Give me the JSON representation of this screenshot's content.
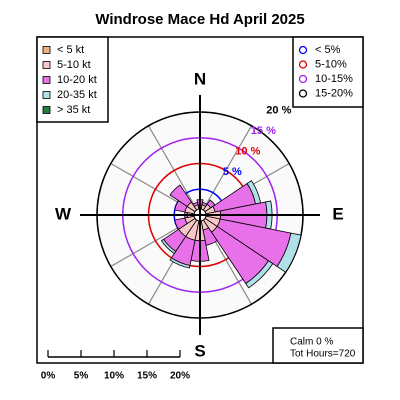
{
  "chart_data": {
    "type": "windrose",
    "title": "Windrose  Mace Hd April 2025",
    "compass": [
      "N",
      "E",
      "S",
      "W"
    ],
    "series": [
      {
        "name": "< 5  kt",
        "color": "#f0b080",
        "values": [
          1,
          1,
          1,
          1,
          1,
          1,
          1,
          1,
          1,
          1,
          1,
          1,
          1,
          1,
          1,
          1
        ]
      },
      {
        "name": "5-10 kt",
        "color": "#f8c8c8",
        "values": [
          1,
          1,
          1.5,
          2,
          3,
          3,
          3,
          2,
          4,
          4,
          4,
          2,
          1.5,
          2,
          2,
          1
        ]
      },
      {
        "name": "10-20 kt",
        "color": "#e870e8",
        "values": [
          1,
          0.5,
          1,
          8,
          9,
          14,
          12,
          3,
          4,
          5,
          3.5,
          2,
          0.5,
          2,
          4,
          0.5
        ]
      },
      {
        "name": "20-35 kt",
        "color": "#b0e0e8",
        "values": [
          0,
          0,
          0,
          1,
          1,
          2,
          1,
          0,
          0,
          0.5,
          0.5,
          0,
          0,
          0,
          0,
          0
        ]
      },
      {
        "name": "> 35 kt",
        "color": "#208040",
        "values": [
          0,
          0,
          0,
          0,
          0,
          0,
          0,
          0,
          0,
          0,
          0,
          0,
          0,
          0,
          0,
          0
        ]
      }
    ],
    "rlim": [
      0,
      20
    ],
    "rticks": [
      {
        "value": 5,
        "label": "5 %",
        "color": "#0000ff"
      },
      {
        "value": 10,
        "label": "10 %",
        "color": "#e00000"
      },
      {
        "value": 15,
        "label": "15 %",
        "color": "#a020f0"
      },
      {
        "value": 20,
        "label": "20 %",
        "color": "#000000"
      }
    ],
    "ring_legend": [
      "< 5%",
      "5-10%",
      "10-15%",
      "15-20%"
    ],
    "scale_ticks": [
      {
        "value": 0,
        "label": "0%"
      },
      {
        "value": 5,
        "label": "5%"
      },
      {
        "value": 10,
        "label": "10%"
      },
      {
        "value": 15,
        "label": "15%"
      },
      {
        "value": 20,
        "label": "20%"
      }
    ],
    "calm_label": "Calm 0 %",
    "total_label": "Tot Hours=720"
  }
}
